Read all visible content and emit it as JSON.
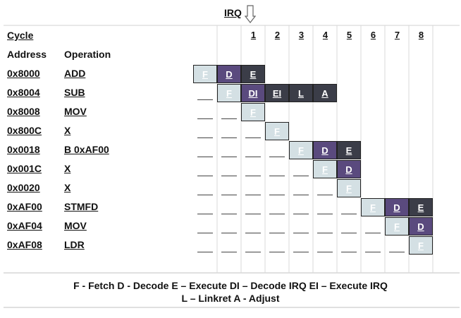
{
  "irq_label": "IRQ",
  "headers": {
    "cycle": "Cycle",
    "address": "Address",
    "operation": "Operation"
  },
  "cycles": [
    "1",
    "2",
    "3",
    "4",
    "5",
    "6",
    "7",
    "8"
  ],
  "rows": [
    {
      "address": "0x8000",
      "operation": "ADD",
      "stages": [
        {
          "col": -2,
          "s": "F"
        },
        {
          "col": -1,
          "s": "D"
        },
        {
          "col": 0,
          "s": "E"
        }
      ],
      "dashes": []
    },
    {
      "address": "0x8004",
      "operation": "SUB",
      "stages": [
        {
          "col": -1,
          "s": "F"
        },
        {
          "col": 0,
          "s": "DI"
        },
        {
          "col": 1,
          "s": "EI"
        },
        {
          "col": 2,
          "s": "L"
        },
        {
          "col": 3,
          "s": "A"
        }
      ],
      "dashes": [
        -2
      ]
    },
    {
      "address": "0x8008",
      "operation": "MOV",
      "stages": [
        {
          "col": 0,
          "s": "F"
        }
      ],
      "dashes": [
        -2,
        -1
      ]
    },
    {
      "address": "0x800C",
      "operation": "X",
      "stages": [
        {
          "col": 1,
          "s": "F"
        }
      ],
      "dashes": [
        -2,
        -1,
        0
      ]
    },
    {
      "address": "0x0018",
      "operation": "B 0xAF00",
      "stages": [
        {
          "col": 2,
          "s": "F"
        },
        {
          "col": 3,
          "s": "D"
        },
        {
          "col": 4,
          "s": "E"
        }
      ],
      "dashes": [
        -2,
        -1,
        0,
        1
      ]
    },
    {
      "address": "0x001C",
      "operation": "X",
      "stages": [
        {
          "col": 3,
          "s": "F"
        },
        {
          "col": 4,
          "s": "D"
        }
      ],
      "dashes": [
        -2,
        -1,
        0,
        1,
        2
      ]
    },
    {
      "address": "0x0020",
      "operation": "X",
      "stages": [
        {
          "col": 4,
          "s": "F"
        }
      ],
      "dashes": [
        -2,
        -1,
        0,
        1,
        2,
        3
      ]
    },
    {
      "address": "0xAF00",
      "operation": "STMFD",
      "stages": [
        {
          "col": 5,
          "s": "F"
        },
        {
          "col": 6,
          "s": "D"
        },
        {
          "col": 7,
          "s": "E"
        }
      ],
      "dashes": [
        -2,
        -1,
        0,
        1,
        2,
        3,
        4
      ]
    },
    {
      "address": "0xAF04",
      "operation": "MOV",
      "stages": [
        {
          "col": 6,
          "s": "F"
        },
        {
          "col": 7,
          "s": "D"
        }
      ],
      "dashes": [
        -2,
        -1,
        0,
        1,
        2,
        3,
        4,
        5
      ]
    },
    {
      "address": "0xAF08",
      "operation": "LDR",
      "stages": [
        {
          "col": 7,
          "s": "F"
        }
      ],
      "dashes": [
        -2,
        -1,
        0,
        1,
        2,
        3,
        4,
        5,
        6
      ]
    }
  ],
  "stage_labels": {
    "F": "F",
    "D": "D",
    "E": "E",
    "DI": "DI",
    "EI": "EI",
    "L": "L",
    "A": "A"
  },
  "legend_line1": "F - Fetch   D - Decode   E – Execute  DI – Decode IRQ   EI – Execute IRQ",
  "legend_line2": "L – Linkret A - Adjust",
  "colors": {
    "fetch": "#d4e0e4",
    "decode": "#5a4a7e",
    "execute": "#3b3d48"
  }
}
